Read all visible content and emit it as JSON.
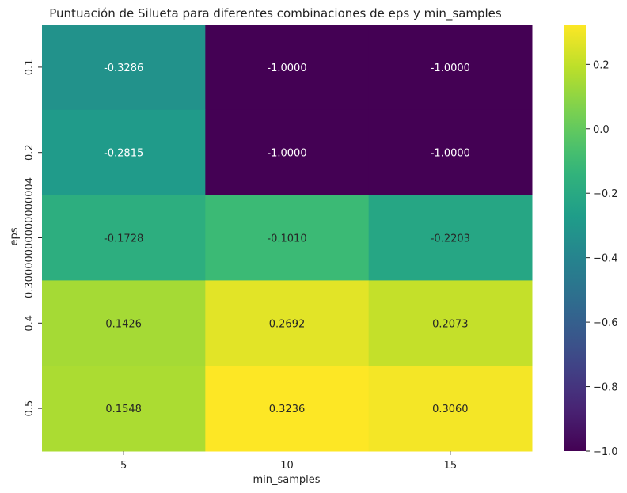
{
  "chart_data": {
    "type": "heatmap",
    "title": "Puntuación de Silueta para diferentes combinaciones de eps y min_samples",
    "xlabel": "min_samples",
    "ylabel": "eps",
    "x_categories": [
      "5",
      "10",
      "15"
    ],
    "y_categories": [
      "0.1",
      "0.2",
      "0.30000000000000004",
      "0.4",
      "0.5"
    ],
    "values": [
      [
        -0.3286,
        -1.0,
        -1.0
      ],
      [
        -0.2815,
        -1.0,
        -1.0
      ],
      [
        -0.1728,
        -0.101,
        -0.2203
      ],
      [
        0.1426,
        0.2692,
        0.2073
      ],
      [
        0.1548,
        0.3236,
        0.306
      ]
    ],
    "value_labels": [
      [
        "-0.3286",
        "-1.0000",
        "-1.0000"
      ],
      [
        "-0.2815",
        "-1.0000",
        "-1.0000"
      ],
      [
        "-0.1728",
        "-0.1010",
        "-0.2203"
      ],
      [
        "0.1426",
        "0.2692",
        "0.2073"
      ],
      [
        "0.1548",
        "0.3236",
        "0.3060"
      ]
    ],
    "colormap": "viridis",
    "vmin": -1.0,
    "vmax": 0.3236,
    "colorbar_ticks": [
      0.2,
      0.0,
      -0.2,
      -0.4,
      -0.6,
      -0.8,
      -1.0
    ],
    "colorbar_tick_labels": [
      "0.2",
      "0.0",
      "−0.2",
      "−0.4",
      "−0.6",
      "−0.8",
      "−1.0"
    ],
    "colorbar_position": "right"
  }
}
